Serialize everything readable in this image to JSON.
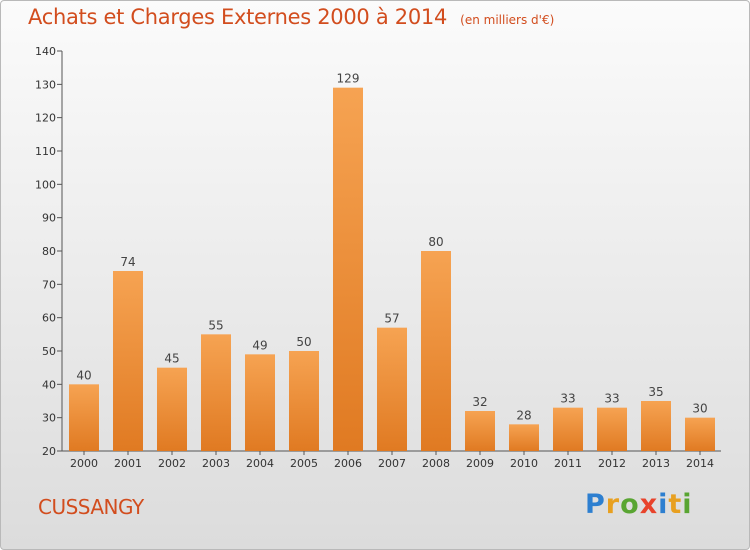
{
  "header": {
    "title": "Achats et Charges Externes 2000 à 2014",
    "subtitle": "(en milliers d'€)"
  },
  "footer": {
    "commune": "CUSSANGY",
    "brand": "Proxiti"
  },
  "colors": {
    "title": "#d24d1e",
    "bar_light": "#f6a352",
    "bar_dark": "#e07a22"
  },
  "chart_data": {
    "type": "bar",
    "title": "Achats et Charges Externes 2000 à 2014",
    "subtitle": "(en milliers d'€)",
    "xlabel": "",
    "ylabel": "",
    "categories": [
      "2000",
      "2001",
      "2002",
      "2003",
      "2004",
      "2005",
      "2006",
      "2007",
      "2008",
      "2009",
      "2010",
      "2011",
      "2012",
      "2013",
      "2014"
    ],
    "values": [
      40,
      74,
      45,
      55,
      49,
      50,
      129,
      57,
      80,
      32,
      28,
      33,
      33,
      35,
      30
    ],
    "ylim": [
      20,
      140
    ],
    "yticks": [
      20,
      30,
      40,
      50,
      60,
      70,
      80,
      90,
      100,
      110,
      120,
      130,
      140
    ],
    "grid": false,
    "data_labels": true
  }
}
